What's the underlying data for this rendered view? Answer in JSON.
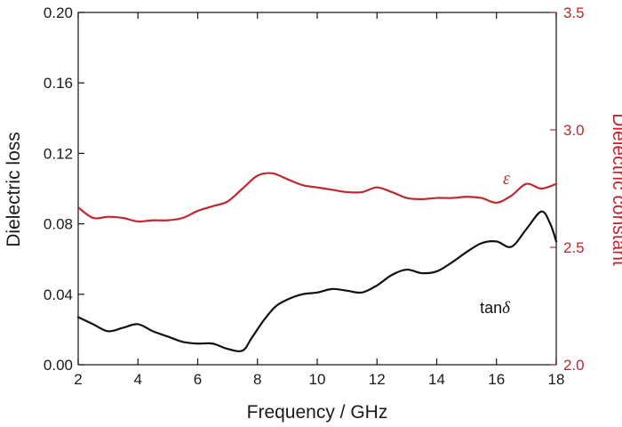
{
  "chart_data": {
    "type": "line",
    "xlabel": "Frequency / GHz",
    "ylabel_left": "Dielectric loss",
    "ylabel_right": "Dielectric constant",
    "xlim": [
      2,
      18
    ],
    "ylim_left": [
      0,
      0.2
    ],
    "ylim_right": [
      2.0,
      3.5
    ],
    "x_ticks": [
      2,
      4,
      6,
      8,
      10,
      12,
      14,
      16,
      18
    ],
    "y_ticks_left": [
      "0.00",
      "0.04",
      "0.08",
      "0.12",
      "0.16",
      "0.20"
    ],
    "y_ticks_right": [
      "2.0",
      "2.5",
      "3.0",
      "3.5"
    ],
    "grid": false,
    "series": [
      {
        "name": "tanδ",
        "label_prefix": "tan",
        "label_symbol": "δ",
        "axis": "left",
        "color": "#111111",
        "x": [
          2.0,
          2.5,
          3.0,
          3.5,
          4.0,
          4.5,
          5.0,
          5.5,
          6.0,
          6.5,
          7.0,
          7.5,
          7.8,
          8.2,
          8.6,
          9.0,
          9.5,
          10.0,
          10.5,
          11.0,
          11.5,
          12.0,
          12.5,
          13.0,
          13.5,
          14.0,
          14.5,
          15.0,
          15.5,
          16.0,
          16.5,
          17.0,
          17.5,
          17.8,
          18.0
        ],
        "values": [
          0.027,
          0.023,
          0.019,
          0.021,
          0.023,
          0.019,
          0.016,
          0.013,
          0.012,
          0.012,
          0.009,
          0.008,
          0.015,
          0.025,
          0.033,
          0.037,
          0.04,
          0.041,
          0.043,
          0.042,
          0.041,
          0.045,
          0.051,
          0.054,
          0.052,
          0.053,
          0.058,
          0.064,
          0.069,
          0.07,
          0.067,
          0.077,
          0.087,
          0.08,
          0.07
        ]
      },
      {
        "name": "ε",
        "label_prefix": "",
        "label_symbol": "ε",
        "axis": "right",
        "color": "#c0282d",
        "x": [
          2.0,
          2.5,
          3.0,
          3.5,
          4.0,
          4.5,
          5.0,
          5.5,
          6.0,
          6.5,
          7.0,
          7.5,
          8.0,
          8.5,
          9.0,
          9.5,
          10.0,
          10.5,
          11.0,
          11.5,
          12.0,
          12.5,
          13.0,
          13.5,
          14.0,
          14.5,
          15.0,
          15.5,
          16.0,
          16.5,
          17.0,
          17.5,
          18.0
        ],
        "values": [
          2.67,
          2.625,
          2.63,
          2.625,
          2.61,
          2.615,
          2.615,
          2.625,
          2.655,
          2.675,
          2.695,
          2.75,
          2.805,
          2.815,
          2.79,
          2.765,
          2.755,
          2.745,
          2.735,
          2.735,
          2.755,
          2.735,
          2.71,
          2.705,
          2.71,
          2.71,
          2.715,
          2.71,
          2.69,
          2.72,
          2.77,
          2.75,
          2.77
        ]
      }
    ]
  }
}
